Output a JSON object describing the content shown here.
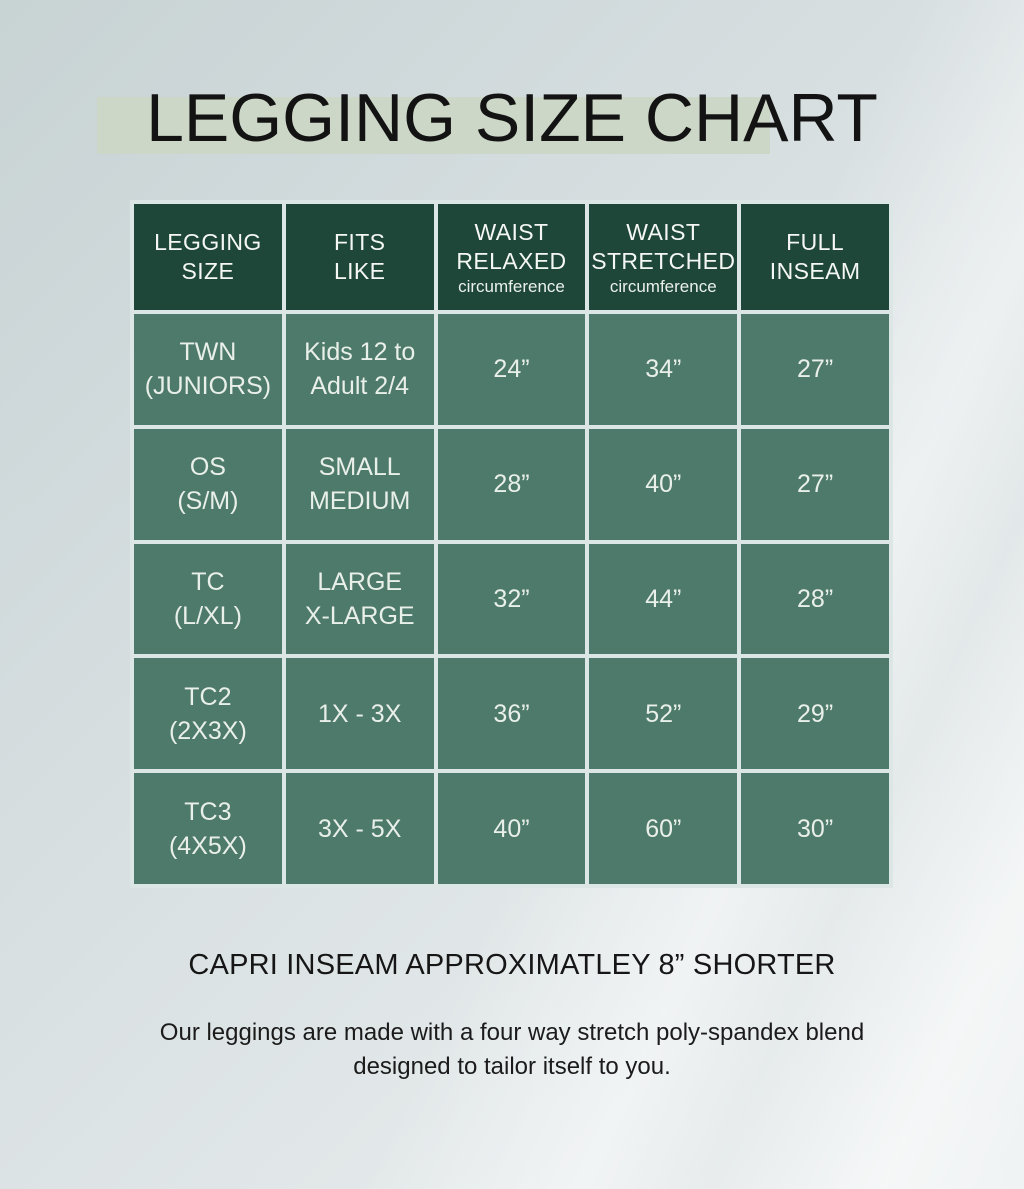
{
  "page": {
    "title": "LEGGING SIZE CHART",
    "caption": "CAPRI INSEAM APPROXIMATLEY 8” SHORTER",
    "description": "Our leggings are made with a four way stretch poly-spandex blend\ndesigned to tailor itself to you."
  },
  "colors": {
    "header_bg": "#1e4639",
    "row_bg": "#4e7a6c",
    "grid_line": "#dce6e5",
    "title_highlight": "#ccd7c7",
    "header_text": "#f4f7f4",
    "body_text": "#e9efe9"
  },
  "table": {
    "header": {
      "c1": "LEGGING\nSIZE",
      "c2": "FITS\nLIKE",
      "c3": "WAIST\nRELAXED",
      "c3_sub": "circumference",
      "c4": "WAIST\nSTRETCHED",
      "c4_sub": "circumference",
      "c5": "FULL\nINSEAM"
    },
    "rows": [
      {
        "size": "TWN\n(JUNIORS)",
        "fits": "Kids 12 to\nAdult 2/4",
        "relaxed": "24”",
        "stretched": "34”",
        "inseam": "27”"
      },
      {
        "size": "OS\n(S/M)",
        "fits": "SMALL\nMEDIUM",
        "relaxed": "28”",
        "stretched": "40”",
        "inseam": "27”"
      },
      {
        "size": "TC\n(L/XL)",
        "fits": "LARGE\nX-LARGE",
        "relaxed": "32”",
        "stretched": "44”",
        "inseam": "28”"
      },
      {
        "size": "TC2\n(2X3X)",
        "fits": "1X - 3X",
        "relaxed": "36”",
        "stretched": "52”",
        "inseam": "29”"
      },
      {
        "size": "TC3\n(4X5X)",
        "fits": "3X - 5X",
        "relaxed": "40”",
        "stretched": "60”",
        "inseam": "30”"
      }
    ]
  },
  "chart_data": {
    "type": "table",
    "title": "LEGGING SIZE CHART",
    "columns": [
      "LEGGING SIZE",
      "FITS LIKE",
      "WAIST RELAXED circumference",
      "WAIST STRETCHED circumference",
      "FULL INSEAM"
    ],
    "rows": [
      [
        "TWN (JUNIORS)",
        "Kids 12 to Adult 2/4",
        "24”",
        "34”",
        "27”"
      ],
      [
        "OS (S/M)",
        "SMALL MEDIUM",
        "28”",
        "40”",
        "27”"
      ],
      [
        "TC (L/XL)",
        "LARGE X-LARGE",
        "32”",
        "44”",
        "28”"
      ],
      [
        "TC2 (2X3X)",
        "1X - 3X",
        "36”",
        "52”",
        "29”"
      ],
      [
        "TC3 (4X5X)",
        "3X - 5X",
        "40”",
        "60”",
        "30”"
      ]
    ],
    "notes": [
      "CAPRI INSEAM APPROXIMATLEY 8” SHORTER",
      "Our leggings are made with a four way stretch poly-spandex blend designed to tailor itself to you."
    ]
  }
}
